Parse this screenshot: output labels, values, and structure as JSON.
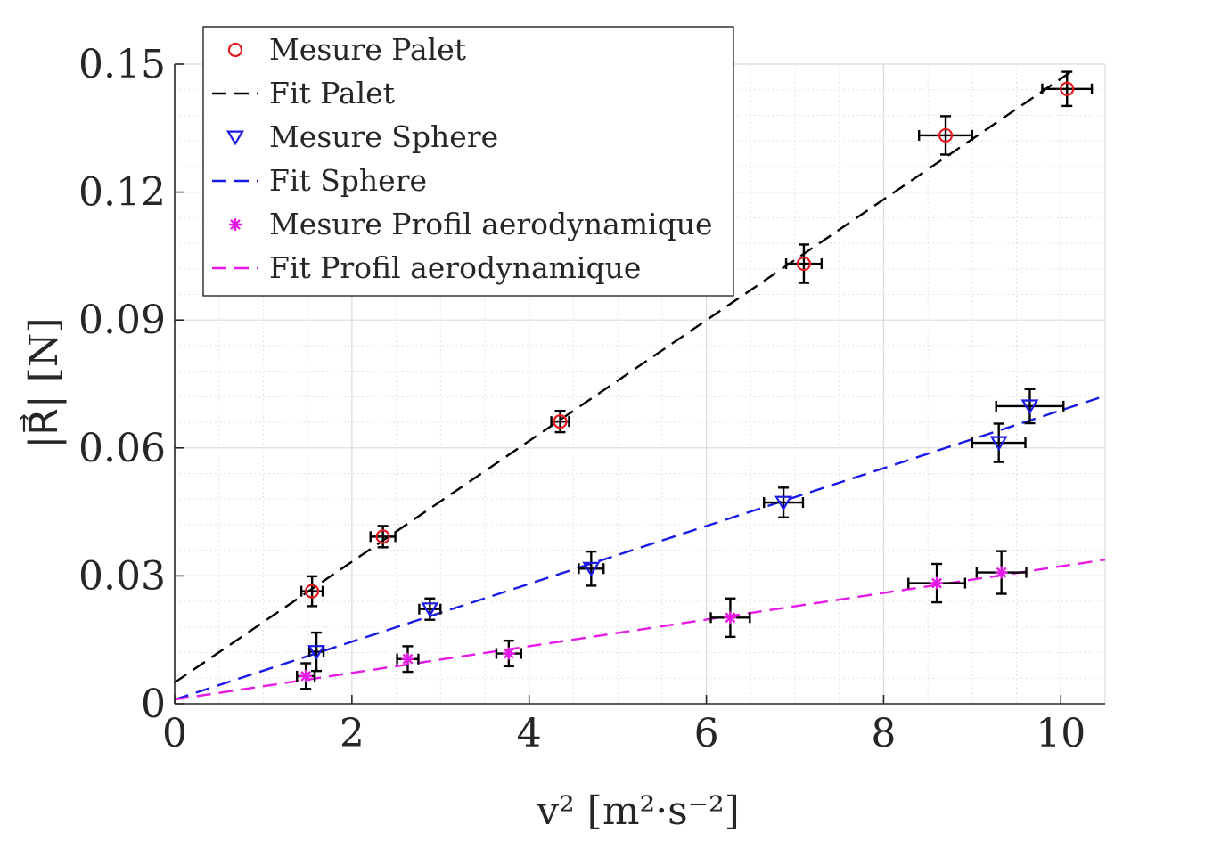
{
  "chart_data": {
    "type": "scatter",
    "xlabel": "v² [m²·s⁻²]",
    "ylabel": "|R⃗| [N]",
    "xlim": [
      0,
      10.5
    ],
    "ylim": [
      0,
      0.15
    ],
    "xticks": [
      0,
      2,
      4,
      6,
      8,
      10
    ],
    "yticks": [
      0,
      0.03,
      0.06,
      0.09,
      0.12,
      0.15
    ],
    "xtick_labels": [
      "0",
      "2",
      "4",
      "6",
      "8",
      "10"
    ],
    "ytick_labels": [
      "0",
      "0.03",
      "0.06",
      "0.09",
      "0.12",
      "0.15"
    ],
    "grid": true,
    "minor_grid": true,
    "legend_position": "top-left",
    "legend": [
      "Mesure Palet",
      "Fit Palet",
      "Mesure Sphere",
      "Fit Sphere",
      "Mesure Profil aerodynamique",
      "Fit Profil aerodynamique"
    ],
    "series": [
      {
        "name": "Mesure Palet",
        "kind": "points",
        "marker": "circle",
        "color": "#e41a1c",
        "points": [
          {
            "x": 1.55,
            "y": 0.0264,
            "xerr": 0.12,
            "yerr": 0.0035
          },
          {
            "x": 2.35,
            "y": 0.0392,
            "xerr": 0.14,
            "yerr": 0.0025
          },
          {
            "x": 4.35,
            "y": 0.0662,
            "xerr": 0.1,
            "yerr": 0.0025
          },
          {
            "x": 7.1,
            "y": 0.1032,
            "xerr": 0.2,
            "yerr": 0.0045
          },
          {
            "x": 8.7,
            "y": 0.1333,
            "xerr": 0.3,
            "yerr": 0.0045
          },
          {
            "x": 10.07,
            "y": 0.1442,
            "xerr": 0.28,
            "yerr": 0.004
          }
        ]
      },
      {
        "name": "Fit Palet",
        "kind": "line",
        "color": "#000000",
        "x": [
          0,
          10.1
        ],
        "y": [
          0.005,
          0.148
        ]
      },
      {
        "name": "Mesure Sphere",
        "kind": "points",
        "marker": "triangle-down",
        "color": "#1a1ae6",
        "points": [
          {
            "x": 1.6,
            "y": 0.0122,
            "xerr": 0.08,
            "yerr": 0.0045
          },
          {
            "x": 2.88,
            "y": 0.0222,
            "xerr": 0.12,
            "yerr": 0.0025
          },
          {
            "x": 4.7,
            "y": 0.0317,
            "xerr": 0.14,
            "yerr": 0.004
          },
          {
            "x": 6.87,
            "y": 0.0472,
            "xerr": 0.22,
            "yerr": 0.0035
          },
          {
            "x": 9.3,
            "y": 0.0612,
            "xerr": 0.3,
            "yerr": 0.0045
          },
          {
            "x": 9.65,
            "y": 0.0698,
            "xerr": 0.38,
            "yerr": 0.004
          }
        ]
      },
      {
        "name": "Fit Sphere",
        "kind": "line",
        "color": "#1a1ae6",
        "x": [
          0,
          10.5
        ],
        "y": [
          0.001,
          0.0722
        ]
      },
      {
        "name": "Mesure Profil aerodynamique",
        "kind": "points",
        "marker": "asterisk",
        "color": "#e619e6",
        "points": [
          {
            "x": 1.48,
            "y": 0.0065,
            "xerr": 0.1,
            "yerr": 0.003
          },
          {
            "x": 2.63,
            "y": 0.0105,
            "xerr": 0.12,
            "yerr": 0.003
          },
          {
            "x": 3.77,
            "y": 0.0118,
            "xerr": 0.14,
            "yerr": 0.003
          },
          {
            "x": 6.27,
            "y": 0.0202,
            "xerr": 0.22,
            "yerr": 0.0045
          },
          {
            "x": 8.6,
            "y": 0.0283,
            "xerr": 0.32,
            "yerr": 0.0045
          },
          {
            "x": 9.33,
            "y": 0.0308,
            "xerr": 0.28,
            "yerr": 0.005
          }
        ]
      },
      {
        "name": "Fit Profil aerodynamique",
        "kind": "line",
        "color": "#e619e6",
        "x": [
          0,
          10.5
        ],
        "y": [
          0.001,
          0.0338
        ]
      }
    ]
  }
}
